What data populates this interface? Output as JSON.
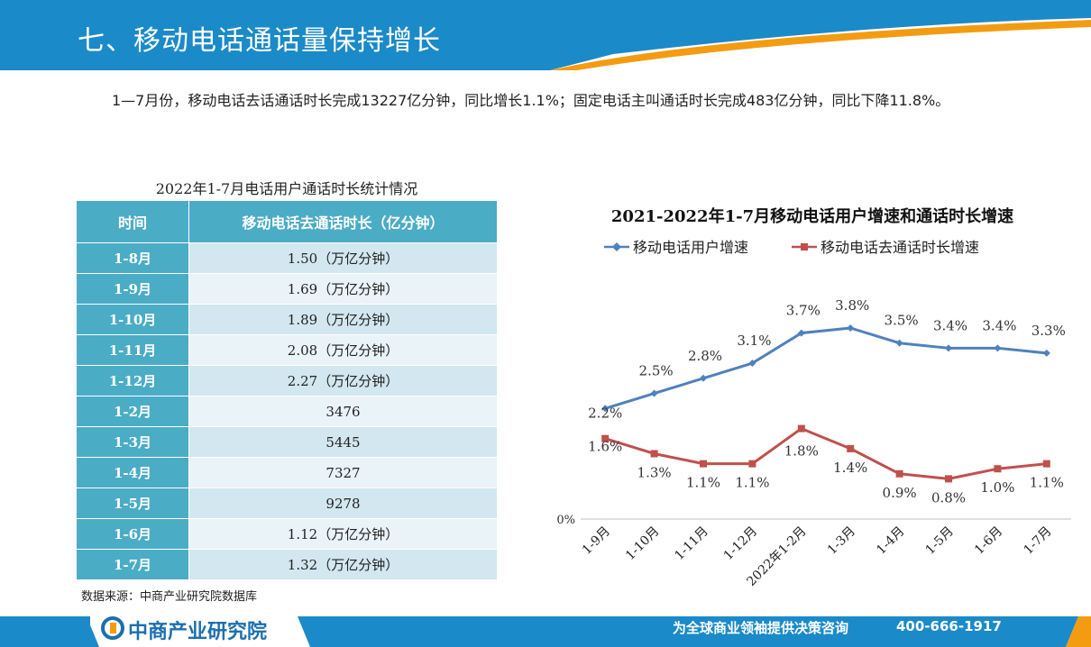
{
  "page": {
    "title": "七、移动电话通话量保持增长",
    "intro": "1—7月份，移动电话去话通话时长完成13227亿分钟，同比增长1.1%；固定电话主叫通话时长完成483亿分钟，同比下降11.8%。",
    "source": "数据来源：中商产业研究院数据库"
  },
  "table": {
    "title": "2022年1-7月电话用户通话时长统计情况",
    "headers": [
      "时间",
      "移动电话去通话时长（亿分钟）"
    ],
    "rows": [
      {
        "period": "1-8月",
        "value": "1.50（万亿分钟）"
      },
      {
        "period": "1-9月",
        "value": "1.69（万亿分钟）"
      },
      {
        "period": "1-10月",
        "value": "1.89（万亿分钟）"
      },
      {
        "period": "1-11月",
        "value": "2.08（万亿分钟）"
      },
      {
        "period": "1-12月",
        "value": "2.27（万亿分钟）"
      },
      {
        "period": "1-2月",
        "value": "3476"
      },
      {
        "period": "1-3月",
        "value": "5445"
      },
      {
        "period": "1-4月",
        "value": "7327"
      },
      {
        "period": "1-5月",
        "value": "9278"
      },
      {
        "period": "1-6月",
        "value": "1.12（万亿分钟）"
      },
      {
        "period": "1-7月",
        "value": "1.32（万亿分钟）"
      }
    ]
  },
  "chart_data": {
    "type": "line",
    "title": "2021-2022年1-7月移动电话用户增速和通话时长增速",
    "categories": [
      "1-9月",
      "1-10月",
      "1-11月",
      "1-12月",
      "2022年1-2月",
      "1-3月",
      "1-4月",
      "1-5月",
      "1-6月",
      "1-7月"
    ],
    "series": [
      {
        "name": "移动电话用户增速",
        "color": "#4f81bd",
        "marker": "diamond",
        "values": [
          2.2,
          2.5,
          2.8,
          3.1,
          3.7,
          3.8,
          3.5,
          3.4,
          3.4,
          3.3
        ],
        "labels": [
          "2.2%",
          "2.5%",
          "2.8%",
          "3.1%",
          "3.7%",
          "3.8%",
          "3.5%",
          "3.4%",
          "3.4%",
          "3.3%"
        ]
      },
      {
        "name": "移动电话去通话时长增速",
        "color": "#c0504d",
        "marker": "square",
        "values": [
          1.6,
          1.3,
          1.1,
          1.1,
          1.8,
          1.4,
          0.9,
          0.8,
          1.0,
          1.1
        ],
        "labels": [
          "1.6%",
          "1.3%",
          "1.1%",
          "1.1%",
          "1.8%",
          "1.4%",
          "0.9%",
          "0.8%",
          "1.0%",
          "1.1%"
        ]
      }
    ],
    "y_axis_label": "0%",
    "legend": "top",
    "grid": false
  },
  "footer": {
    "logo": "中商产业研究院",
    "slogan": "为全球商业领袖提供决策咨询",
    "phone": "400-666-1917"
  },
  "colors": {
    "accent": "#1b8ac8",
    "header_orange": "#f39c12",
    "table_header": "#4bacc6"
  }
}
